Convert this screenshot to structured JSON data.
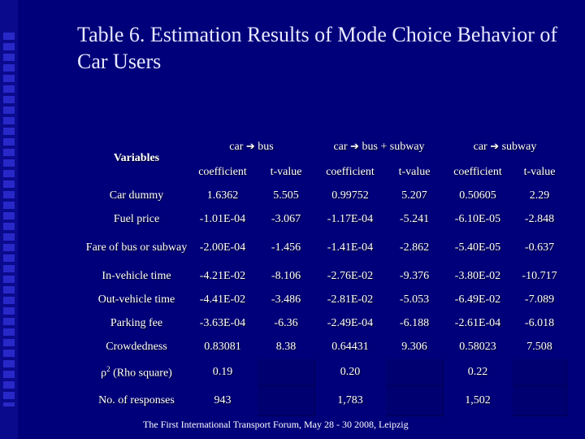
{
  "title": "Table 6. Estimation Results of Mode Choice Behavior of Car Users",
  "table": {
    "variables_header": "Variables",
    "groups": [
      {
        "from": "car",
        "arrow_icon": "right-arrow-icon",
        "to": "bus"
      },
      {
        "from": "car",
        "arrow_icon": "right-arrow-icon",
        "to": "bus + subway"
      },
      {
        "from": "car",
        "arrow_icon": "right-arrow-icon",
        "to": "subway"
      }
    ],
    "subheaders": {
      "coef": "coefficient",
      "tval": "t-value"
    },
    "rows": [
      {
        "variable": "Car dummy",
        "c1": "1.6362",
        "t1": "5.505",
        "c2": "0.99752",
        "t2": "5.207",
        "c3": "0.50605",
        "t3": "2.29"
      },
      {
        "variable": "Fuel price",
        "c1": "-1.01E-04",
        "t1": "-3.067",
        "c2": "-1.17E-04",
        "t2": "-5.241",
        "c3": "-6.10E-05",
        "t3": "-2.848"
      },
      {
        "variable": "Fare of bus or subway",
        "c1": "-2.00E-04",
        "t1": "-1.456",
        "c2": "-1.41E-04",
        "t2": "-2.862",
        "c3": "-5.40E-05",
        "t3": "-0.637"
      },
      {
        "variable": "In-vehicle time",
        "c1": "-4.21E-02",
        "t1": "-8.106",
        "c2": "-2.76E-02",
        "t2": "-9.376",
        "c3": "-3.80E-02",
        "t3": "-10.717"
      },
      {
        "variable": "Out-vehicle time",
        "c1": "-4.41E-02",
        "t1": "-3.486",
        "c2": "-2.81E-02",
        "t2": "-5.053",
        "c3": "-6.49E-02",
        "t3": "-7.089"
      },
      {
        "variable": "Parking fee",
        "c1": "-3.63E-04",
        "t1": "-6.36",
        "c2": "-2.49E-04",
        "t2": "-6.188",
        "c3": "-2.61E-04",
        "t3": "-6.018"
      },
      {
        "variable": "Crowdedness",
        "c1": "0.83081",
        "t1": "8.38",
        "c2": "0.64431",
        "t2": "9.306",
        "c3": "0.58023",
        "t3": "7.508"
      }
    ],
    "rho_row": {
      "symbol": "ρ",
      "superscript": "2",
      "label": "(Rho square)",
      "v1": "0.19",
      "v2": "0.20",
      "v3": "0.22"
    },
    "responses_row": {
      "label": "No. of responses",
      "v1": "943",
      "v2": "1,783",
      "v3": "1,502"
    }
  },
  "footer": "The First International Transport Forum, May 28 - 30  2008,  Leipzig"
}
